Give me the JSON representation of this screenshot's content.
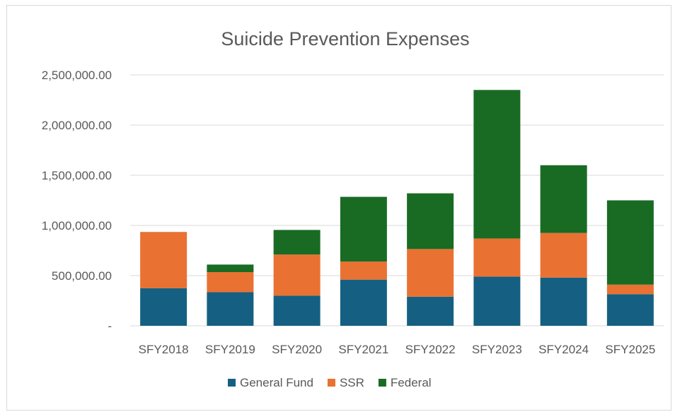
{
  "chart_data": {
    "type": "bar",
    "stacked": true,
    "title": "Suicide Prevention Expenses",
    "xlabel": "",
    "ylabel": "",
    "ylim": [
      0,
      2500000
    ],
    "y_ticks": [
      0,
      500000,
      1000000,
      1500000,
      2000000,
      2500000
    ],
    "y_tick_labels": [
      "-",
      "500,000.00",
      "1,000,000.00",
      "1,500,000.00",
      "2,000,000.00",
      "2,500,000.00"
    ],
    "grid": true,
    "legend_position": "bottom",
    "categories": [
      "SFY2018",
      "SFY2019",
      "SFY2020",
      "SFY2021",
      "SFY2022",
      "SFY2023",
      "SFY2024",
      "SFY2025"
    ],
    "series": [
      {
        "name": "General Fund",
        "color": "#156082",
        "values": [
          375000,
          335000,
          300000,
          460000,
          290000,
          490000,
          480000,
          315000
        ]
      },
      {
        "name": "SSR",
        "color": "#E97132",
        "values": [
          560000,
          200000,
          410000,
          180000,
          475000,
          380000,
          445000,
          95000
        ]
      },
      {
        "name": "Federal",
        "color": "#196B24",
        "values": [
          0,
          75000,
          245000,
          645000,
          555000,
          1480000,
          675000,
          840000
        ]
      }
    ]
  }
}
